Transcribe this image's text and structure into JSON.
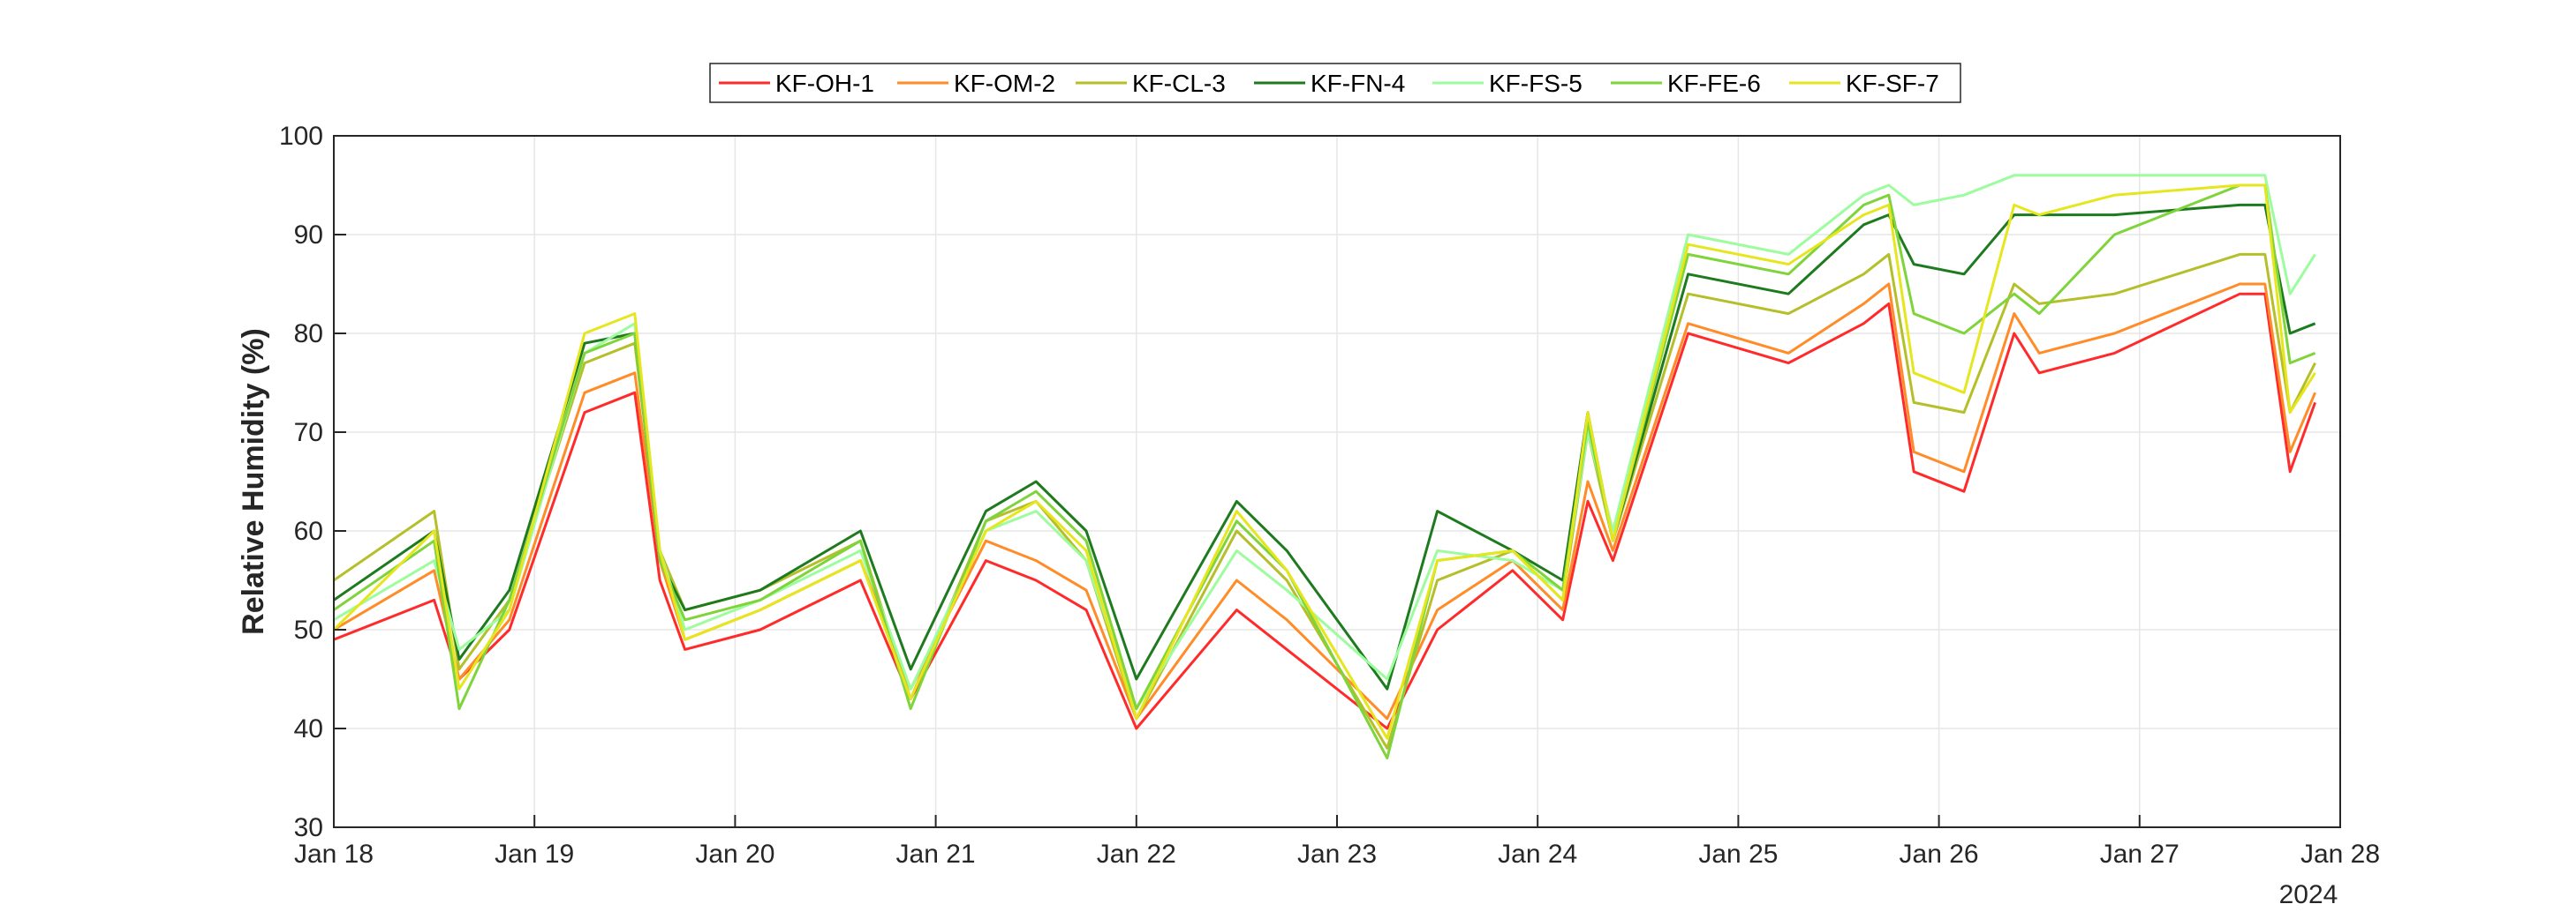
{
  "chart_data": {
    "type": "line",
    "title": "",
    "xlabel": "",
    "ylabel": "Relative Humidity (%)",
    "ylim": [
      30,
      100
    ],
    "yticks": [
      30,
      40,
      50,
      60,
      70,
      80,
      90,
      100
    ],
    "xlim": [
      "2024-01-18",
      "2024-01-28"
    ],
    "xtick_labels": [
      "Jan 18",
      "Jan 19",
      "Jan 20",
      "Jan 21",
      "Jan 22",
      "Jan 23",
      "Jan 24",
      "Jan 25",
      "Jan 26",
      "Jan 27",
      "Jan 28"
    ],
    "x_year_label": "2024",
    "grid": true,
    "legend_position": "top",
    "series": [
      {
        "name": "KF-OH-1",
        "color": "#ff2a2a",
        "x": [
          "2024-01-18",
          "2024-01-18T12:00",
          "2024-01-18T15:00",
          "2024-01-18T21:00",
          "2024-01-19T06:00",
          "2024-01-19T12:00",
          "2024-01-19T15:00",
          "2024-01-19T18:00",
          "2024-01-20T03:00",
          "2024-01-20T15:00",
          "2024-01-20T21:00",
          "2024-01-21T06:00",
          "2024-01-21T12:00",
          "2024-01-21T18:00",
          "2024-01-22T00:00",
          "2024-01-22T12:00",
          "2024-01-22T18:00",
          "2024-01-23T06:00",
          "2024-01-23T12:00",
          "2024-01-23T21:00",
          "2024-01-24T03:00",
          "2024-01-24T06:00",
          "2024-01-24T09:00",
          "2024-01-24T18:00",
          "2024-01-25T06:00",
          "2024-01-25T15:00",
          "2024-01-25T18:00",
          "2024-01-25T21:00",
          "2024-01-26T03:00",
          "2024-01-26T09:00",
          "2024-01-26T12:00",
          "2024-01-26T21:00",
          "2024-01-27T12:00",
          "2024-01-27T15:00",
          "2024-01-27T18:00",
          "2024-01-27T21:00"
        ],
        "values": [
          49,
          53,
          45,
          50,
          72,
          74,
          55,
          48,
          50,
          55,
          43,
          57,
          55,
          52,
          40,
          52,
          48,
          40,
          50,
          56,
          51,
          63,
          57,
          80,
          77,
          81,
          83,
          66,
          64,
          80,
          76,
          78,
          84,
          84,
          66,
          73
        ]
      },
      {
        "name": "KF-OM-2",
        "color": "#ff8c28",
        "x": [
          "2024-01-18",
          "2024-01-18T12:00",
          "2024-01-18T15:00",
          "2024-01-18T21:00",
          "2024-01-19T06:00",
          "2024-01-19T12:00",
          "2024-01-19T15:00",
          "2024-01-19T18:00",
          "2024-01-20T03:00",
          "2024-01-20T15:00",
          "2024-01-20T21:00",
          "2024-01-21T06:00",
          "2024-01-21T12:00",
          "2024-01-21T18:00",
          "2024-01-22T00:00",
          "2024-01-22T12:00",
          "2024-01-22T18:00",
          "2024-01-23T06:00",
          "2024-01-23T12:00",
          "2024-01-23T21:00",
          "2024-01-24T03:00",
          "2024-01-24T06:00",
          "2024-01-24T09:00",
          "2024-01-24T18:00",
          "2024-01-25T06:00",
          "2024-01-25T15:00",
          "2024-01-25T18:00",
          "2024-01-25T21:00",
          "2024-01-26T03:00",
          "2024-01-26T09:00",
          "2024-01-26T12:00",
          "2024-01-26T21:00",
          "2024-01-27T12:00",
          "2024-01-27T15:00",
          "2024-01-27T18:00",
          "2024-01-27T21:00"
        ],
        "values": [
          50,
          56,
          45,
          51,
          74,
          76,
          57,
          49,
          52,
          57,
          44,
          59,
          57,
          54,
          41,
          55,
          51,
          41,
          52,
          57,
          52,
          65,
          58,
          81,
          78,
          83,
          85,
          68,
          66,
          82,
          78,
          80,
          85,
          85,
          68,
          74
        ]
      },
      {
        "name": "KF-CL-3",
        "color": "#b5bf2a",
        "x": [
          "2024-01-18",
          "2024-01-18T12:00",
          "2024-01-18T15:00",
          "2024-01-18T21:00",
          "2024-01-19T06:00",
          "2024-01-19T12:00",
          "2024-01-19T15:00",
          "2024-01-19T18:00",
          "2024-01-20T03:00",
          "2024-01-20T15:00",
          "2024-01-20T21:00",
          "2024-01-21T06:00",
          "2024-01-21T12:00",
          "2024-01-21T18:00",
          "2024-01-22T00:00",
          "2024-01-22T12:00",
          "2024-01-22T18:00",
          "2024-01-23T06:00",
          "2024-01-23T12:00",
          "2024-01-23T21:00",
          "2024-01-24T03:00",
          "2024-01-24T06:00",
          "2024-01-24T09:00",
          "2024-01-24T18:00",
          "2024-01-25T06:00",
          "2024-01-25T15:00",
          "2024-01-25T18:00",
          "2024-01-25T21:00",
          "2024-01-26T03:00",
          "2024-01-26T09:00",
          "2024-01-26T12:00",
          "2024-01-26T21:00",
          "2024-01-27T12:00",
          "2024-01-27T15:00",
          "2024-01-27T18:00",
          "2024-01-27T21:00"
        ],
        "values": [
          55,
          62,
          46,
          53,
          77,
          79,
          58,
          52,
          54,
          59,
          43,
          61,
          63,
          57,
          41,
          60,
          55,
          38,
          55,
          58,
          53,
          70,
          59,
          84,
          82,
          86,
          88,
          73,
          72,
          85,
          83,
          84,
          88,
          88,
          72,
          77
        ]
      },
      {
        "name": "KF-FN-4",
        "color": "#1e7a1e",
        "x": [
          "2024-01-18",
          "2024-01-18T12:00",
          "2024-01-18T15:00",
          "2024-01-18T21:00",
          "2024-01-19T06:00",
          "2024-01-19T12:00",
          "2024-01-19T15:00",
          "2024-01-19T18:00",
          "2024-01-20T03:00",
          "2024-01-20T15:00",
          "2024-01-20T21:00",
          "2024-01-21T06:00",
          "2024-01-21T12:00",
          "2024-01-21T18:00",
          "2024-01-22T00:00",
          "2024-01-22T12:00",
          "2024-01-22T18:00",
          "2024-01-23T06:00",
          "2024-01-23T12:00",
          "2024-01-23T21:00",
          "2024-01-24T03:00",
          "2024-01-24T06:00",
          "2024-01-24T09:00",
          "2024-01-24T18:00",
          "2024-01-25T06:00",
          "2024-01-25T15:00",
          "2024-01-25T18:00",
          "2024-01-25T21:00",
          "2024-01-26T03:00",
          "2024-01-26T09:00",
          "2024-01-26T12:00",
          "2024-01-26T21:00",
          "2024-01-27T12:00",
          "2024-01-27T15:00",
          "2024-01-27T18:00",
          "2024-01-27T21:00"
        ],
        "values": [
          53,
          60,
          47,
          54,
          79,
          80,
          57,
          52,
          54,
          60,
          46,
          62,
          65,
          60,
          45,
          63,
          58,
          44,
          62,
          58,
          55,
          72,
          59,
          86,
          84,
          91,
          92,
          87,
          86,
          92,
          92,
          92,
          93,
          93,
          80,
          81
        ]
      },
      {
        "name": "KF-FS-5",
        "color": "#9dfc9d",
        "x": [
          "2024-01-18",
          "2024-01-18T12:00",
          "2024-01-18T15:00",
          "2024-01-18T21:00",
          "2024-01-19T06:00",
          "2024-01-19T12:00",
          "2024-01-19T15:00",
          "2024-01-19T18:00",
          "2024-01-20T03:00",
          "2024-01-20T15:00",
          "2024-01-20T21:00",
          "2024-01-21T06:00",
          "2024-01-21T12:00",
          "2024-01-21T18:00",
          "2024-01-22T00:00",
          "2024-01-22T12:00",
          "2024-01-22T18:00",
          "2024-01-23T06:00",
          "2024-01-23T12:00",
          "2024-01-23T21:00",
          "2024-01-24T03:00",
          "2024-01-24T06:00",
          "2024-01-24T09:00",
          "2024-01-24T18:00",
          "2024-01-25T06:00",
          "2024-01-25T15:00",
          "2024-01-25T18:00",
          "2024-01-25T21:00",
          "2024-01-26T03:00",
          "2024-01-26T09:00",
          "2024-01-26T12:00",
          "2024-01-26T21:00",
          "2024-01-27T12:00",
          "2024-01-27T15:00",
          "2024-01-27T18:00",
          "2024-01-27T21:00"
        ],
        "values": [
          51,
          57,
          48,
          52,
          78,
          81,
          58,
          50,
          53,
          58,
          44,
          60,
          62,
          57,
          42,
          58,
          54,
          45,
          58,
          57,
          54,
          70,
          60,
          90,
          88,
          94,
          95,
          93,
          94,
          96,
          96,
          96,
          96,
          96,
          84,
          88
        ]
      },
      {
        "name": "KF-FE-6",
        "color": "#7ed43a",
        "x": [
          "2024-01-18",
          "2024-01-18T12:00",
          "2024-01-18T15:00",
          "2024-01-18T21:00",
          "2024-01-19T06:00",
          "2024-01-19T12:00",
          "2024-01-19T15:00",
          "2024-01-19T18:00",
          "2024-01-20T03:00",
          "2024-01-20T15:00",
          "2024-01-20T21:00",
          "2024-01-21T06:00",
          "2024-01-21T12:00",
          "2024-01-21T18:00",
          "2024-01-22T00:00",
          "2024-01-22T12:00",
          "2024-01-22T18:00",
          "2024-01-23T06:00",
          "2024-01-23T12:00",
          "2024-01-23T21:00",
          "2024-01-24T03:00",
          "2024-01-24T06:00",
          "2024-01-24T09:00",
          "2024-01-24T18:00",
          "2024-01-25T06:00",
          "2024-01-25T15:00",
          "2024-01-25T18:00",
          "2024-01-25T21:00",
          "2024-01-26T03:00",
          "2024-01-26T09:00",
          "2024-01-26T12:00",
          "2024-01-26T21:00",
          "2024-01-27T12:00",
          "2024-01-27T15:00",
          "2024-01-27T18:00",
          "2024-01-27T21:00"
        ],
        "values": [
          52,
          59,
          42,
          53,
          78,
          80,
          57,
          51,
          53,
          59,
          42,
          61,
          64,
          59,
          42,
          61,
          56,
          37,
          57,
          58,
          54,
          71,
          59,
          88,
          86,
          93,
          94,
          82,
          80,
          84,
          82,
          90,
          95,
          95,
          77,
          78
        ]
      },
      {
        "name": "KF-SF-7",
        "color": "#e6e61e",
        "x": [
          "2024-01-18",
          "2024-01-18T12:00",
          "2024-01-18T15:00",
          "2024-01-18T21:00",
          "2024-01-19T06:00",
          "2024-01-19T12:00",
          "2024-01-19T15:00",
          "2024-01-19T18:00",
          "2024-01-20T03:00",
          "2024-01-20T15:00",
          "2024-01-20T21:00",
          "2024-01-21T06:00",
          "2024-01-21T12:00",
          "2024-01-21T18:00",
          "2024-01-22T00:00",
          "2024-01-22T12:00",
          "2024-01-22T18:00",
          "2024-01-23T06:00",
          "2024-01-23T12:00",
          "2024-01-23T21:00",
          "2024-01-24T03:00",
          "2024-01-24T06:00",
          "2024-01-24T09:00",
          "2024-01-24T18:00",
          "2024-01-25T06:00",
          "2024-01-25T15:00",
          "2024-01-25T18:00",
          "2024-01-25T21:00",
          "2024-01-26T03:00",
          "2024-01-26T09:00",
          "2024-01-26T12:00",
          "2024-01-26T21:00",
          "2024-01-27T12:00",
          "2024-01-27T15:00",
          "2024-01-27T18:00",
          "2024-01-27T21:00"
        ],
        "values": [
          50,
          60,
          44,
          52,
          80,
          82,
          58,
          49,
          52,
          57,
          43,
          60,
          63,
          58,
          41,
          62,
          56,
          39,
          57,
          58,
          53,
          72,
          59,
          89,
          87,
          92,
          93,
          76,
          74,
          93,
          92,
          94,
          95,
          95,
          72,
          76
        ]
      }
    ]
  }
}
